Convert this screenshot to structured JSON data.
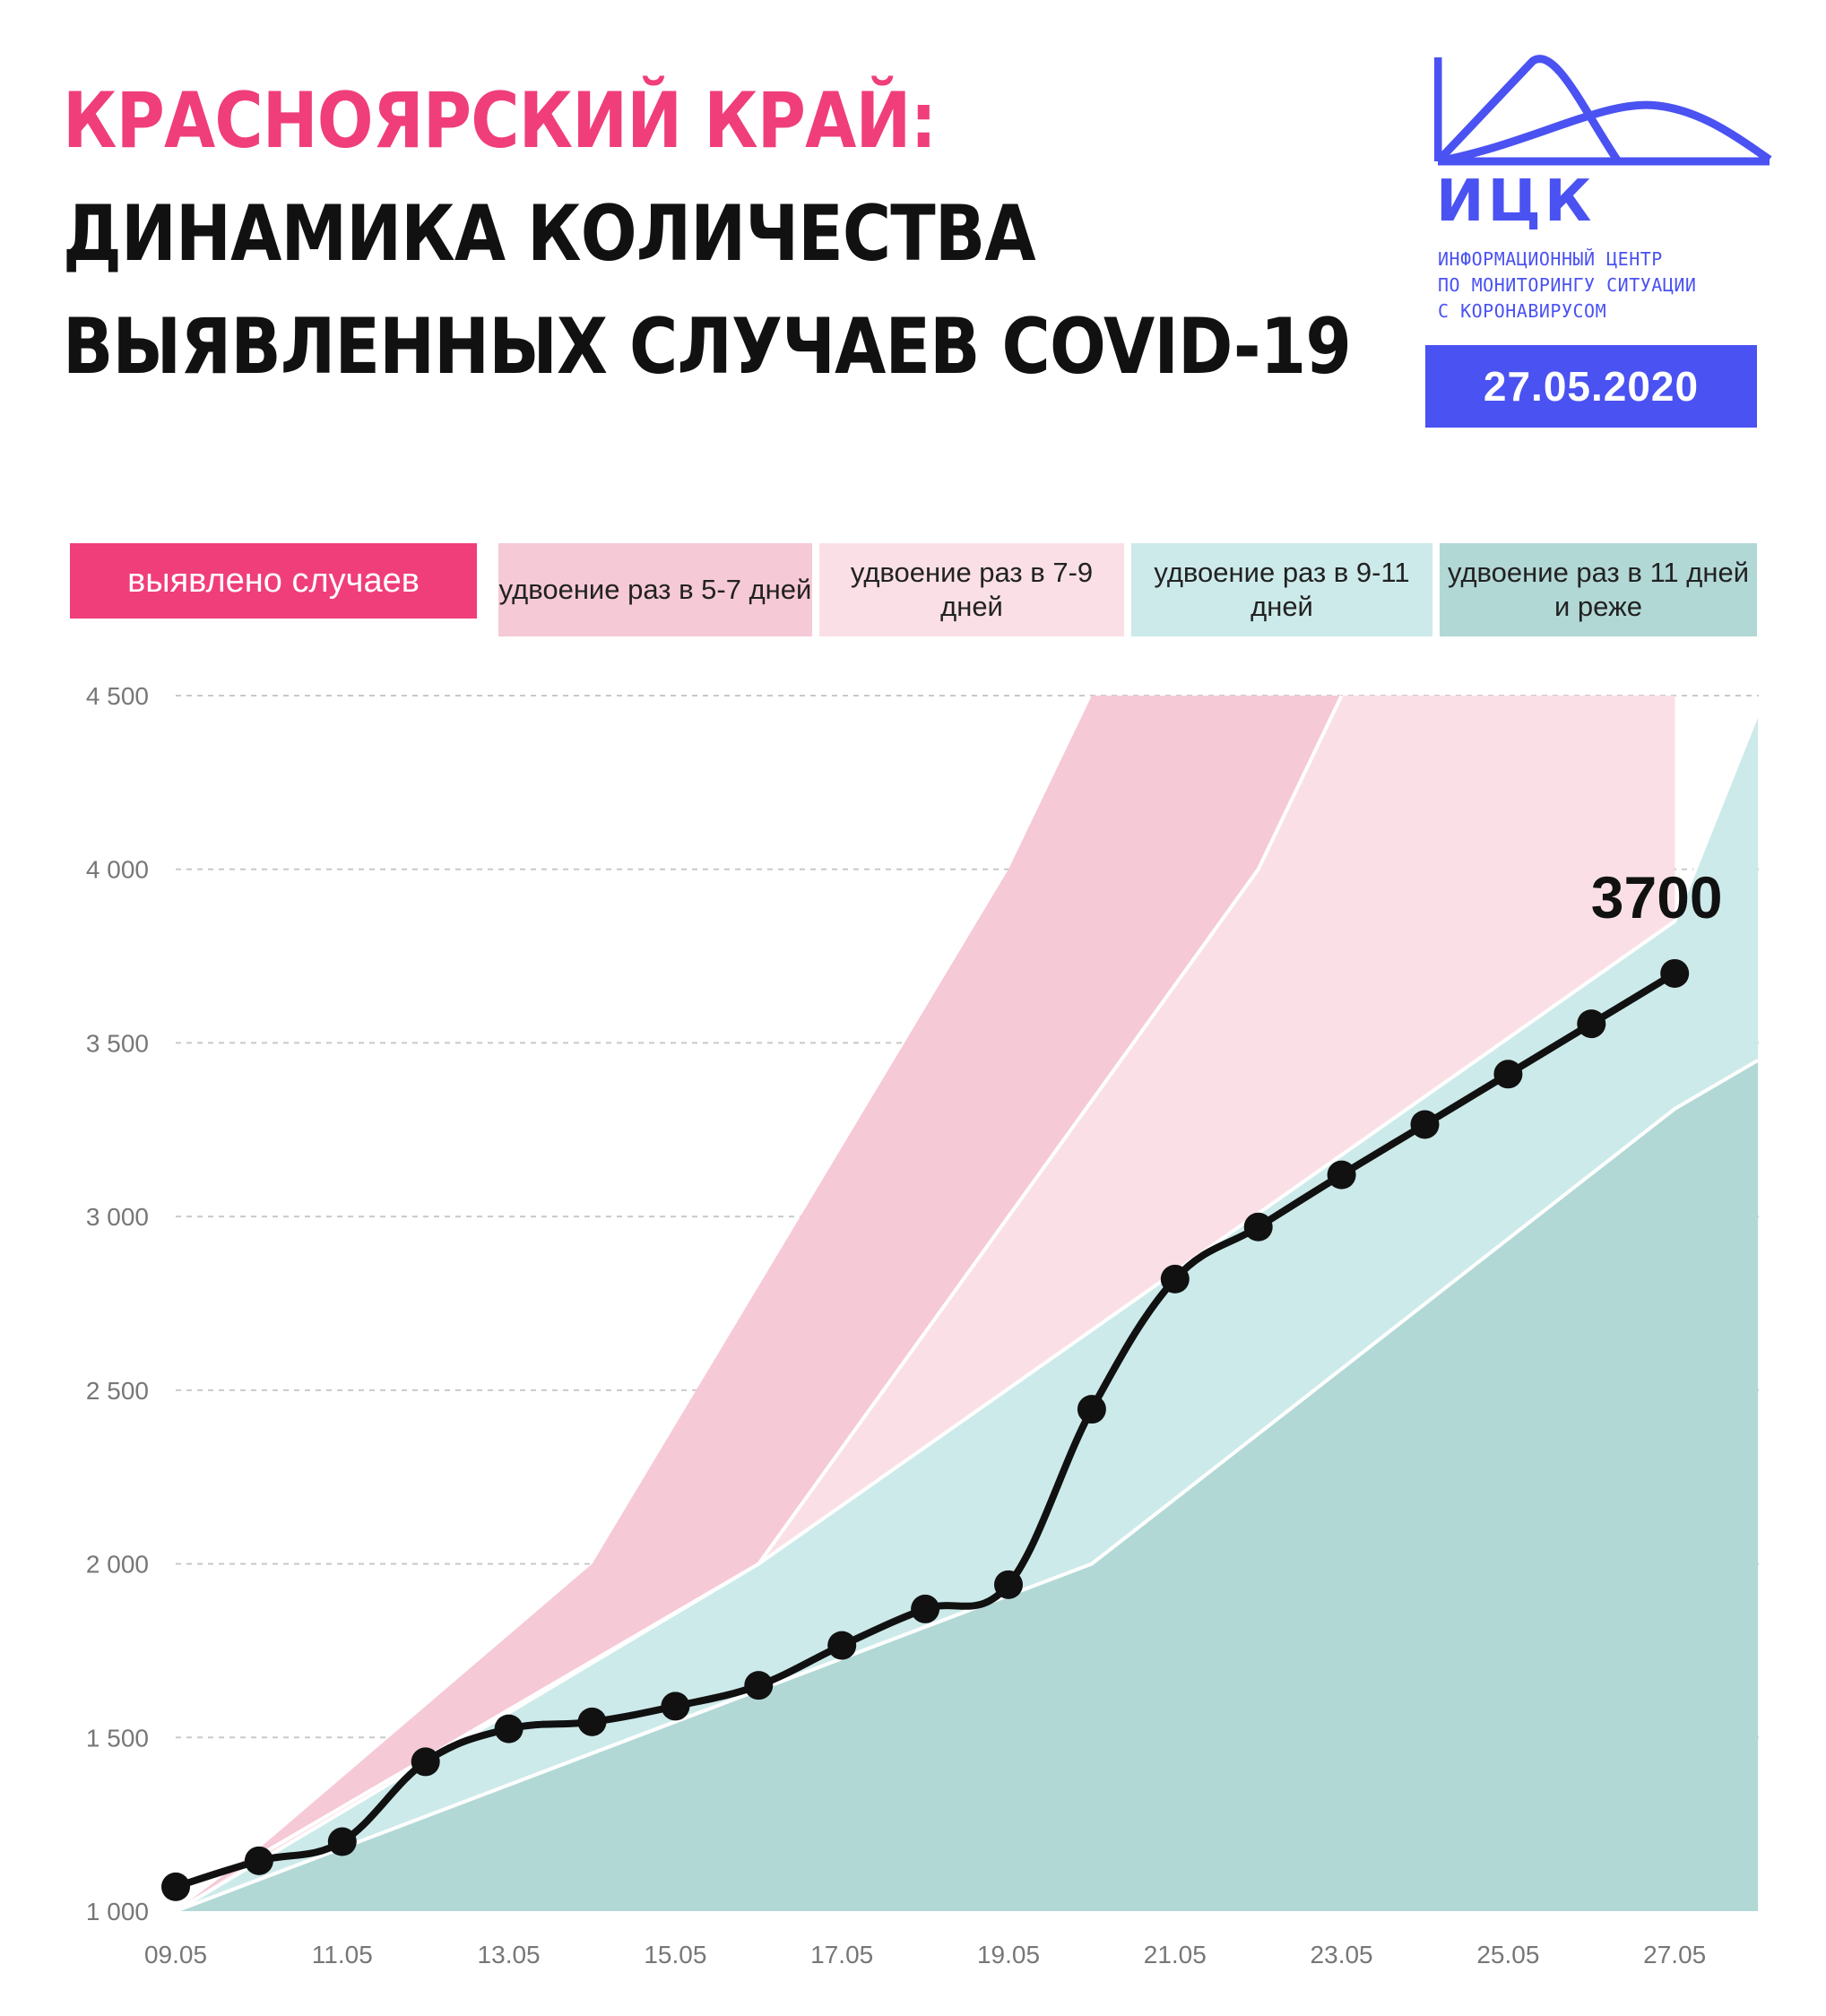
{
  "title": {
    "line1": "КРАСНОЯРСКИЙ КРАЙ:",
    "line2": "ДИНАМИКА КОЛИЧЕСТВА",
    "line3": "ВЫЯВЛЕННЫХ СЛУЧАЕВ COVID-19"
  },
  "logo": {
    "abbr": "ИЦК",
    "sub1": "ИНФОРМАЦИОННЫЙ ЦЕНТР",
    "sub2": "ПО МОНИТОРИНГУ СИТУАЦИИ",
    "sub3": "С КОРОНАВИРУСОМ"
  },
  "date": "27.05.2020",
  "legend": {
    "cases": "выявлено случаев",
    "d57": "удвоение раз в 5-7 дней",
    "d79": "удвоение раз в 7-9 дней",
    "d911": "удвоение раз в 9-11 дней",
    "d11": "удвоение раз в 11 дней и реже"
  },
  "colors": {
    "cases": "#f03e7a",
    "band_5_7": "#f6c9d6",
    "band_7_9": "#fae0e6",
    "band_9_11": "#cdeaea",
    "band_11": "#b2d8d6",
    "accent": "#4a52f2"
  },
  "chart_data": {
    "type": "line",
    "x": [
      "09.05",
      "10.05",
      "11.05",
      "12.05",
      "13.05",
      "14.05",
      "15.05",
      "16.05",
      "17.05",
      "18.05",
      "19.05",
      "20.05",
      "21.05",
      "22.05",
      "23.05",
      "24.05",
      "25.05",
      "26.05",
      "27.05"
    ],
    "series": [
      {
        "values": [
          1070,
          1145,
          1200,
          1430,
          1525,
          1545,
          1590,
          1650,
          1765,
          1870,
          1940,
          2445,
          2820,
          2970,
          3120,
          3265,
          3410,
          3555,
          3700
        ]
      }
    ],
    "last_value_label": "3700",
    "x_tick_labels": [
      "09.05",
      "11.05",
      "13.05",
      "15.05",
      "17.05",
      "19.05",
      "21.05",
      "23.05",
      "25.05",
      "27.05"
    ],
    "y_tick_labels": [
      "1 000",
      "1 500",
      "2 000",
      "2 500",
      "3 000",
      "3 500",
      "4 000",
      "4 500"
    ],
    "y_ticks": [
      1000,
      1500,
      2000,
      2500,
      3000,
      3500,
      4000,
      4500
    ],
    "ylim": [
      1000,
      4500
    ],
    "grid": true,
    "bands": {
      "x": [
        0,
        1,
        5,
        7,
        10,
        11,
        13,
        14,
        18,
        19
      ],
      "boundary_5_7": [
        null,
        1180,
        2000,
        null,
        4000,
        4500,
        null,
        null,
        null,
        null
      ],
      "boundary_7_9": [
        null,
        1160,
        null,
        2000,
        null,
        null,
        4000,
        4500,
        null,
        null
      ],
      "boundary_9_11": [
        1000,
        null,
        null,
        2000,
        null,
        null,
        null,
        null,
        3850,
        4450
      ],
      "boundary_11": [
        1000,
        null,
        null,
        null,
        null,
        2000,
        null,
        null,
        3310,
        3450
      ]
    }
  }
}
